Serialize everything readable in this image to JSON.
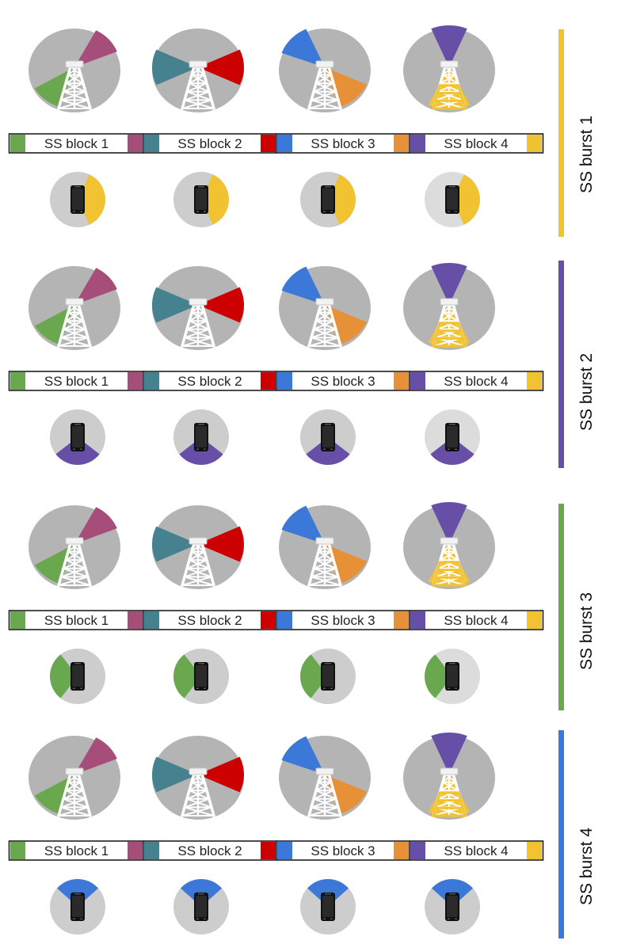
{
  "colors": {
    "beam_base": "#b4b4b4",
    "ue_base": "#cdcdcd",
    "ue_base_light": "#dcdcdc",
    "tower": "#ffffff",
    "tower_outline": "#c8c8c8",
    "tower_active": "#f1c232",
    "phone": "#111111",
    "strip_border": "#111111"
  },
  "block_colors": {
    "ssb1_start": "#6aa84f",
    "ssb1_end": "#a64d79",
    "ssb2_start": "#45818e",
    "ssb2_end": "#cc0000",
    "ssb3_start": "#3c78d8",
    "ssb3_end": "#e69138",
    "ssb4_start": "#674ea7",
    "ssb4_end": "#f1c232"
  },
  "ss_blocks": [
    {
      "label": "SS block 1",
      "start_color": "#6aa84f",
      "end_color": "#a64d79"
    },
    {
      "label": "SS block 2",
      "start_color": "#45818e",
      "end_color": "#cc0000"
    },
    {
      "label": "SS block 3",
      "start_color": "#3c78d8",
      "end_color": "#e69138"
    },
    {
      "label": "SS block 4",
      "start_color": "#674ea7",
      "end_color": "#f1c232"
    }
  ],
  "bursts": [
    {
      "label": "SS burst 1",
      "color": "#f1c232",
      "ue_beam_color": "#f1c232",
      "ue_beam_direction": "right"
    },
    {
      "label": "SS burst 2",
      "color": "#674ea7",
      "ue_beam_color": "#674ea7",
      "ue_beam_direction": "down"
    },
    {
      "label": "SS burst 3",
      "color": "#6aa84f",
      "ue_beam_color": "#6aa84f",
      "ue_beam_direction": "left"
    },
    {
      "label": "SS burst 4",
      "color": "#3c78d8",
      "ue_beam_color": "#3c78d8",
      "ue_beam_direction": "up"
    }
  ],
  "gnb_beams": [
    {
      "sectors": [
        {
          "color": "#6aa84f",
          "direction": "lower-left"
        },
        {
          "color": "#a64d79",
          "direction": "upper-right"
        }
      ]
    },
    {
      "sectors": [
        {
          "color": "#45818e",
          "direction": "left"
        },
        {
          "color": "#cc0000",
          "direction": "right"
        }
      ]
    },
    {
      "sectors": [
        {
          "color": "#3c78d8",
          "direction": "upper-left"
        },
        {
          "color": "#e69138",
          "direction": "lower-right"
        }
      ]
    },
    {
      "sectors": [
        {
          "color": "#674ea7",
          "direction": "up"
        },
        {
          "color": "#f1c232",
          "direction": "down"
        }
      ]
    }
  ]
}
